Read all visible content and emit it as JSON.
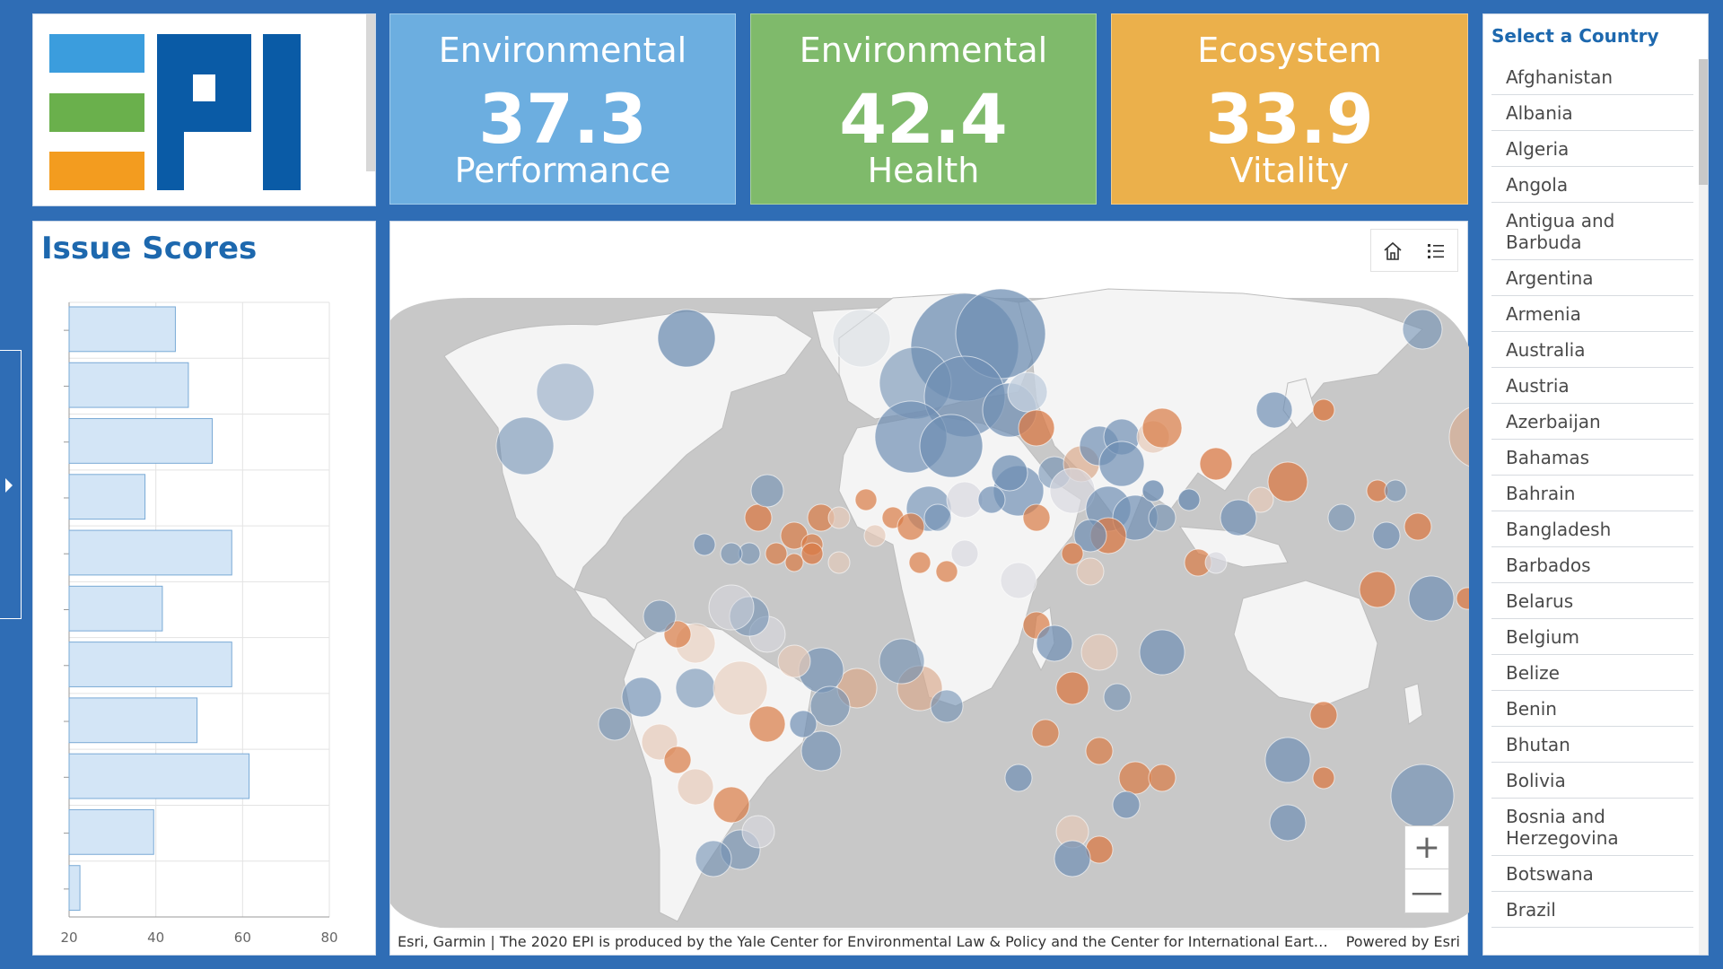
{
  "logo": {
    "text": "EPI",
    "colors": {
      "bar1": "#3b9ddd",
      "bar2": "#6ab04c",
      "bar3": "#f39c1f",
      "letters": "#0a5ba6"
    }
  },
  "kpis": [
    {
      "title_top": "Environmental",
      "value": "37.3",
      "title_bottom": "Performance",
      "color": "#6caee0"
    },
    {
      "title_top": "Environmental",
      "value": "42.4",
      "title_bottom": "Health",
      "color": "#7fba6b"
    },
    {
      "title_top": "Ecosystem",
      "value": "33.9",
      "title_bottom": "Vitality",
      "color": "#ebb04b"
    }
  ],
  "issue_scores": {
    "title": "Issue Scores",
    "chart_data": {
      "type": "bar",
      "orientation": "horizontal",
      "values": [
        44.5,
        47.5,
        53,
        37.5,
        57.5,
        41.5,
        57.5,
        49.5,
        61.5,
        39.5,
        22.5
      ],
      "xlim": [
        20,
        80
      ],
      "xticks": [
        "20",
        "40",
        "60",
        "80"
      ],
      "grid": true,
      "bar_fill": "#d3e5f6",
      "bar_stroke": "#7aaad6"
    }
  },
  "map": {
    "buttons": {
      "home": "home-icon",
      "legend": "list-icon"
    },
    "zoom_in": "+",
    "zoom_out": "—",
    "attribution": "Esri, Garmin | The 2020 EPI is produced by the Yale Center for Environmental Law & Policy and the Center for International Earth Science Information Network",
    "powered_by": "Powered by Esri",
    "colors": {
      "ocean": "#c8c8c8",
      "land": "#f4f4f4",
      "blue_circle": "#6f8fb3",
      "orange_circle": "#d97a45"
    }
  },
  "country_selector": {
    "title": "Select a Country",
    "countries": [
      "Afghanistan",
      "Albania",
      "Algeria",
      "Angola",
      "Antigua and Barbuda",
      "Argentina",
      "Armenia",
      "Australia",
      "Austria",
      "Azerbaijan",
      "Bahamas",
      "Bahrain",
      "Bangladesh",
      "Barbados",
      "Belarus",
      "Belgium",
      "Belize",
      "Benin",
      "Bhutan",
      "Bolivia",
      "Bosnia and Herzegovina",
      "Botswana",
      "Brazil"
    ]
  }
}
